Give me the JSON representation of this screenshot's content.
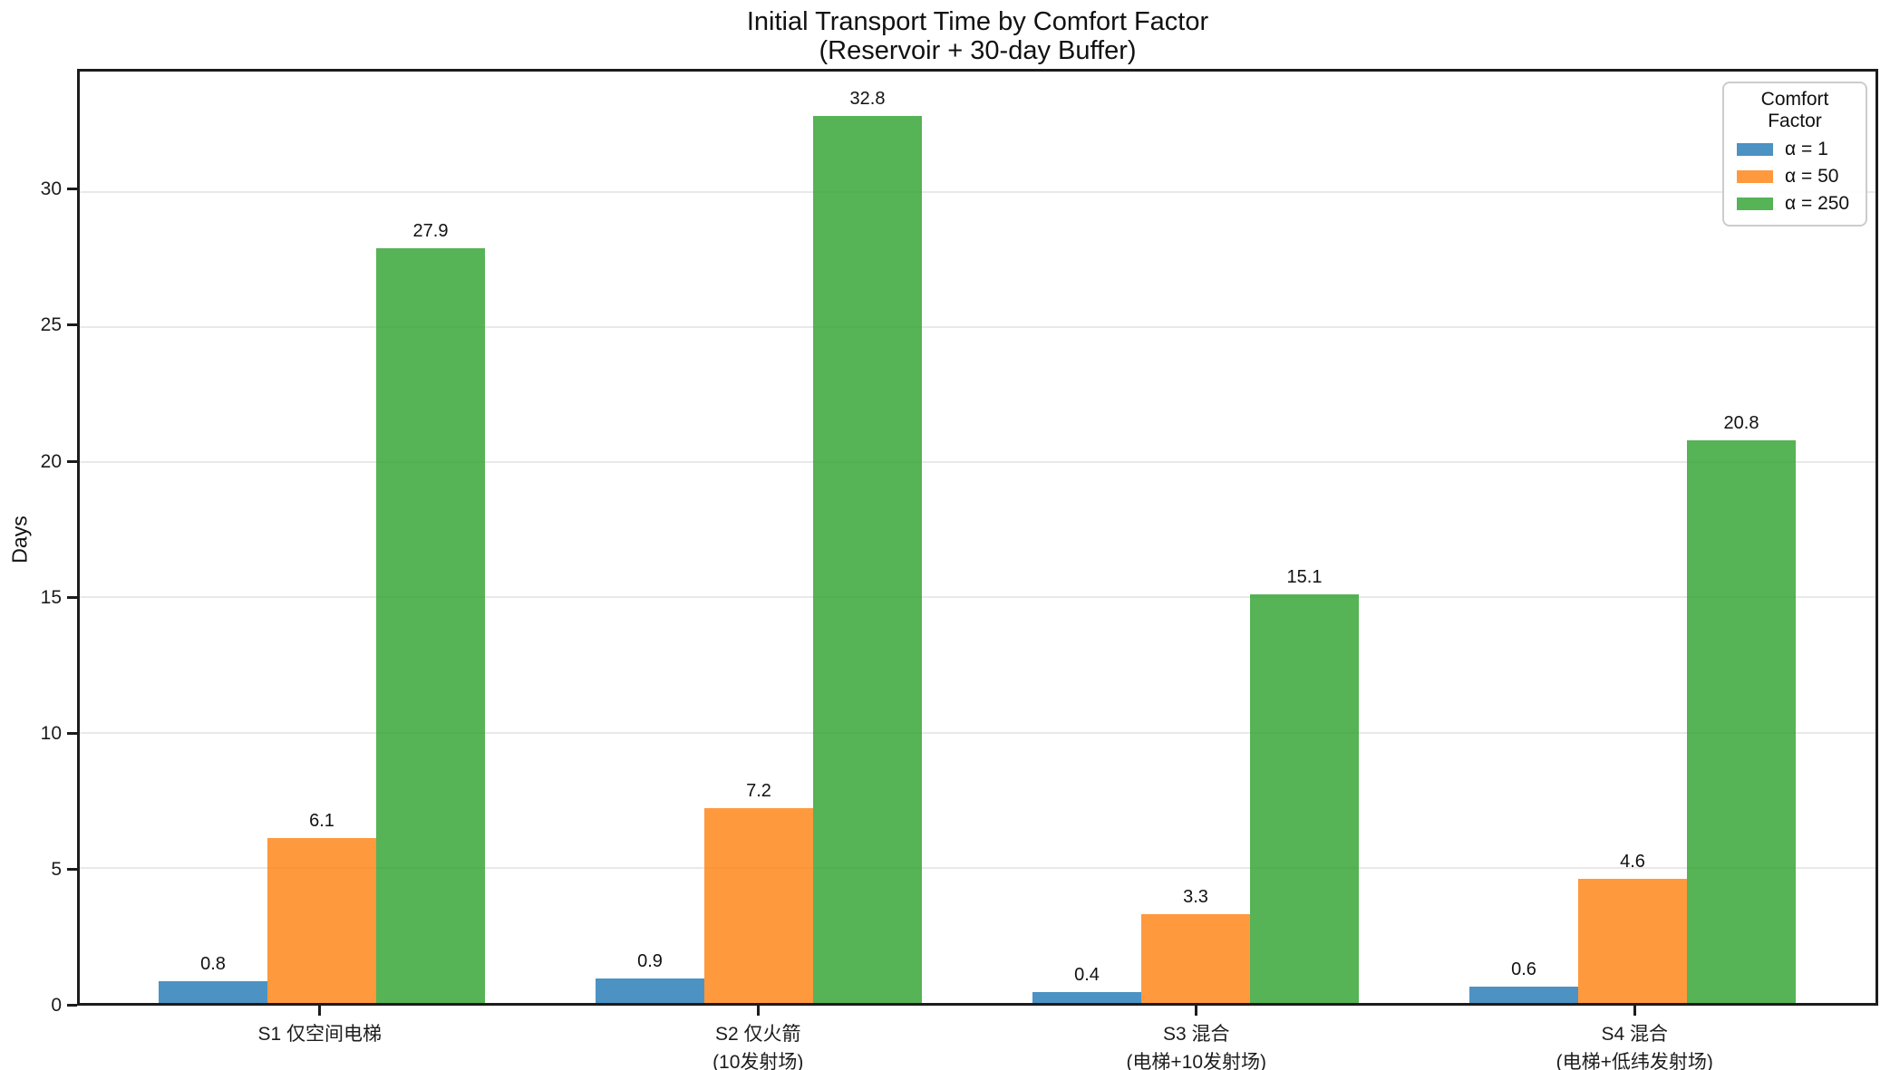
{
  "chart_data": {
    "type": "bar",
    "title": "Initial Transport Time by Comfort Factor",
    "subtitle": "(Reservoir + 30-day Buffer)",
    "ylabel": "Days",
    "xlabel": "",
    "ylim": [
      0,
      34.44
    ],
    "yticks": [
      0,
      5,
      10,
      15,
      20,
      25,
      30
    ],
    "grid": true,
    "bar_labels": true,
    "legend": {
      "title": "Comfort Factor",
      "position": "upper right"
    },
    "categories": [
      [
        "S1 仅空间电梯"
      ],
      [
        "S2 仅火箭",
        "(10发射场)"
      ],
      [
        "S3 混合",
        "(电梯+10发射场)"
      ],
      [
        "S4 混合",
        "(电梯+低纬发射场)"
      ]
    ],
    "series": [
      {
        "name": "α = 1",
        "color": "#4b92c3",
        "color_rgba": "rgba(31,119,180,0.8)",
        "values": [
          0.8,
          0.9,
          0.4,
          0.6
        ]
      },
      {
        "name": "α = 50",
        "color": "#ff983e",
        "color_rgba": "rgba(255,127,14,0.8)",
        "values": [
          6.1,
          7.2,
          3.3,
          4.6
        ]
      },
      {
        "name": "α = 250",
        "color": "#56b356",
        "color_rgba": "rgba(44,160,44,0.8)",
        "values": [
          27.9,
          32.8,
          15.1,
          20.8
        ]
      }
    ],
    "axis_color": "#1c1c1c",
    "grid_color": "#e9e9e9",
    "value_label_format": "one_decimal"
  }
}
